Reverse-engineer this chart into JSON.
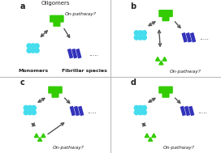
{
  "cyan_color": "#44DDEE",
  "green_color": "#33CC00",
  "blue_color": "#3333BB",
  "arrow_color": "#555555",
  "text_color": "#222222",
  "bg_color": "#FFFFFF",
  "divider_color": "#BBBBBB",
  "label_a": "a",
  "label_b": "b",
  "label_c": "c",
  "label_d": "d",
  "text_oligomers": "Oligomers",
  "text_monomers": "Monomers",
  "text_fibrillar": "Fibrillar species",
  "text_onpathway": "On-pathway?",
  "dots": ".....",
  "figsize": [
    2.72,
    1.89
  ],
  "dpi": 100
}
